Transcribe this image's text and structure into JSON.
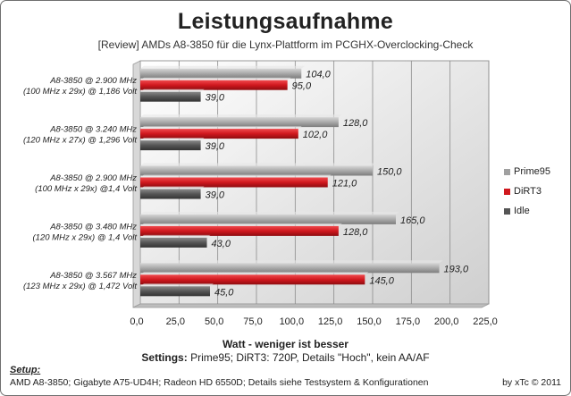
{
  "chart_data": {
    "type": "bar",
    "orientation": "horizontal",
    "title": "Leistungsaufnahme",
    "subtitle": "[Review] AMDs  A8-3850  für  die Lynx-Plattform  im PCGHX-Overclocking-Check",
    "xlabel": "Watt - weniger ist besser",
    "xlim": [
      0,
      225
    ],
    "x_ticks": [
      "0,0",
      "25,0",
      "50,0",
      "75,0",
      "100,0",
      "125,0",
      "150,0",
      "175,0",
      "200,0",
      "225,0"
    ],
    "x_tick_values": [
      0,
      25,
      50,
      75,
      100,
      125,
      150,
      175,
      200,
      225
    ],
    "grid": true,
    "legend_position": "right",
    "categories": [
      {
        "line1": "A8-3850 @ 2.900 MHz",
        "line2": "(100 MHz x 29x) @ 1,186 Volt"
      },
      {
        "line1": "A8-3850 @ 3.240 MHz",
        "line2": "(120 MHz x 27x) @ 1,296 Volt"
      },
      {
        "line1": "A8-3850 @ 2.900 MHz",
        "line2": "(100 MHz x 29x) @1,4 Volt"
      },
      {
        "line1": "A8-3850 @ 3.480 MHz",
        "line2": "(120 MHz x 29x) @ 1,4 Volt"
      },
      {
        "line1": "A8-3850 @ 3.567 MHz",
        "line2": "(123 MHz x 29x) @ 1,472 Volt"
      }
    ],
    "series": [
      {
        "name": "Prime95",
        "color": "#a9a9a9",
        "values": [
          104.0,
          128.0,
          150.0,
          165.0,
          193.0
        ],
        "labels": [
          "104,0",
          "128,0",
          "150,0",
          "165,0",
          "193,0"
        ]
      },
      {
        "name": "DiRT3",
        "color": "#d0181e",
        "values": [
          95.0,
          102.0,
          121.0,
          128.0,
          145.0
        ],
        "labels": [
          "95,0",
          "102,0",
          "121,0",
          "128,0",
          "145,0"
        ]
      },
      {
        "name": "Idle",
        "color": "#555555",
        "values": [
          39.0,
          39.0,
          39.0,
          43.0,
          45.0
        ],
        "labels": [
          "39,0",
          "39,0",
          "39,0",
          "43,0",
          "45,0"
        ]
      }
    ]
  },
  "settings": {
    "label": "Settings:",
    "text": " Prime95; DiRT3: 720P, Details \"Hoch\", kein AA/AF"
  },
  "setup": {
    "label": "Setup:",
    "text": "AMD A8-3850; Gigabyte A75-UD4H; Radeon HD 6550D; Details siehe Testsystem & Konfigurationen"
  },
  "credit": "by xTc © 2011"
}
